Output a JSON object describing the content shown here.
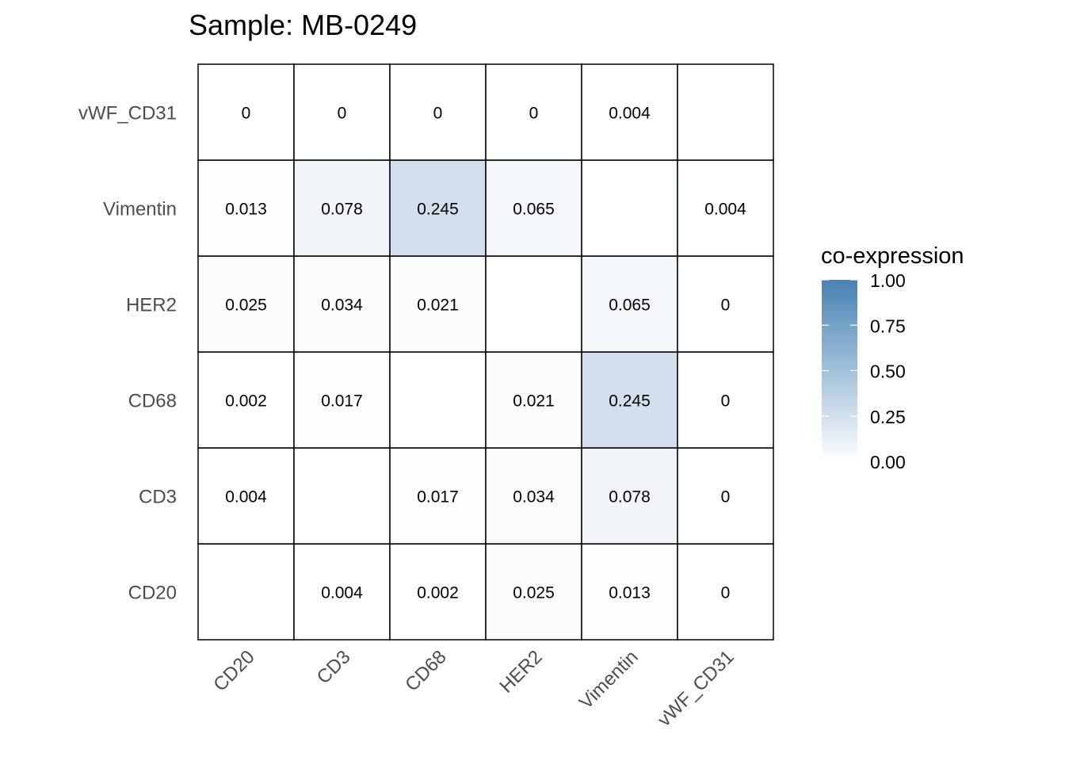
{
  "chart_data": {
    "type": "heatmap",
    "title": "Sample: MB-0249",
    "xlabel": "",
    "ylabel": "",
    "x_categories": [
      "CD20",
      "CD3",
      "CD68",
      "HER2",
      "Vimentin",
      "vWF_CD31"
    ],
    "y_categories": [
      "CD20",
      "CD3",
      "CD68",
      "HER2",
      "Vimentin",
      "vWF_CD31"
    ],
    "values": [
      [
        null,
        0.004,
        0.002,
        0.025,
        0.013,
        0
      ],
      [
        0.004,
        null,
        0.017,
        0.034,
        0.078,
        0
      ],
      [
        0.002,
        0.017,
        null,
        0.021,
        0.245,
        0
      ],
      [
        0.025,
        0.034,
        0.021,
        null,
        0.065,
        0
      ],
      [
        0.013,
        0.078,
        0.245,
        0.065,
        null,
        0.004
      ],
      [
        0,
        0,
        0,
        0,
        0.004,
        null
      ]
    ],
    "legend": {
      "title": "co-expression",
      "position": "right",
      "range": [
        0,
        1
      ],
      "ticks": [
        "0.00",
        "0.25",
        "0.50",
        "0.75",
        "1.00"
      ],
      "low_color": "#FFFFFF",
      "high_color": "#4682B4"
    }
  }
}
